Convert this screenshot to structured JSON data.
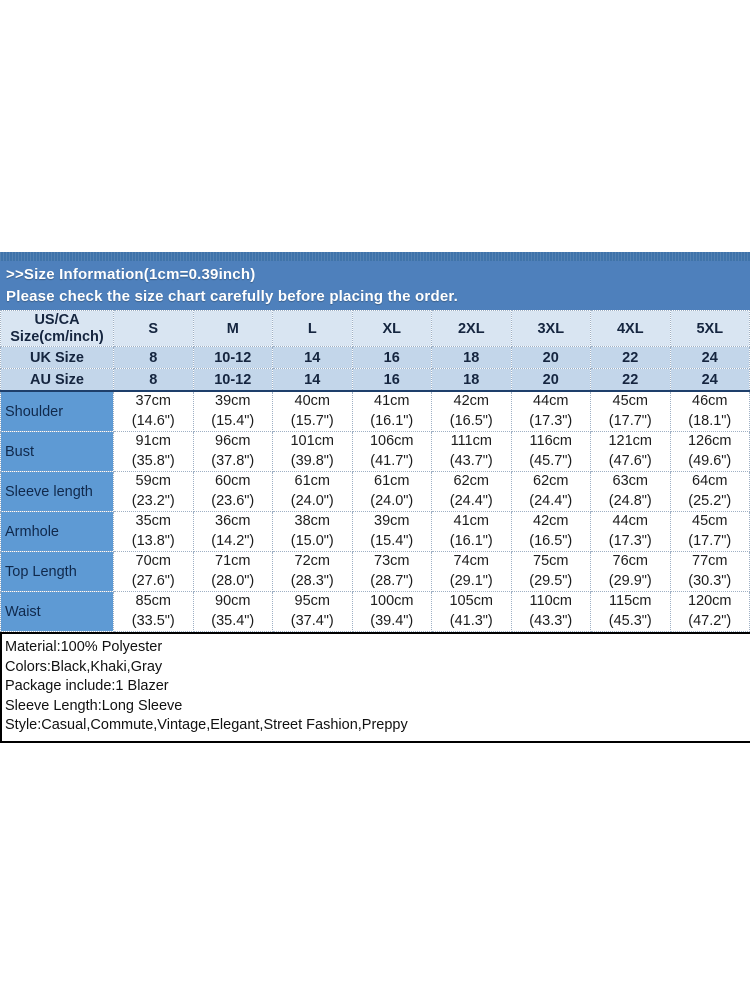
{
  "banner": {
    "line1": ">>Size Information(1cm=0.39inch)",
    "line2": "Please check the size chart carefully before placing the order."
  },
  "colors": {
    "banner_bg": "#4e80bc",
    "banner_strip": "#3f73aa",
    "header_row_bg": "#d9e5f2",
    "size_rows_bg": "#c3d6ea",
    "label_column_bg": "#5e9ad4",
    "divider_line": "#1e3f6b",
    "dotted_border": "#9fb0c4",
    "banner_text": "#ffffff"
  },
  "table": {
    "corner": {
      "line1": "US/CA",
      "line2": "Size(cm/inch)"
    },
    "sizes": [
      "S",
      "M",
      "L",
      "XL",
      "2XL",
      "3XL",
      "4XL",
      "5XL"
    ],
    "uk": {
      "label": "UK Size",
      "values": [
        "8",
        "10-12",
        "14",
        "16",
        "18",
        "20",
        "22",
        "24"
      ]
    },
    "au": {
      "label": "AU Size",
      "values": [
        "8",
        "10-12",
        "14",
        "16",
        "18",
        "20",
        "22",
        "24"
      ]
    },
    "measurements": [
      {
        "label": "Shoulder",
        "cm": [
          "37cm",
          "39cm",
          "40cm",
          "41cm",
          "42cm",
          "44cm",
          "45cm",
          "46cm"
        ],
        "inch": [
          "(14.6\")",
          "(15.4\")",
          "(15.7\")",
          "(16.1\")",
          "(16.5\")",
          "(17.3\")",
          "(17.7\")",
          "(18.1\")"
        ]
      },
      {
        "label": "Bust",
        "cm": [
          "91cm",
          "96cm",
          "101cm",
          "106cm",
          "111cm",
          "116cm",
          "121cm",
          "126cm"
        ],
        "inch": [
          "(35.8\")",
          "(37.8\")",
          "(39.8\")",
          "(41.7\")",
          "(43.7\")",
          "(45.7\")",
          "(47.6\")",
          "(49.6\")"
        ]
      },
      {
        "label": "Sleeve length",
        "cm": [
          "59cm",
          "60cm",
          "61cm",
          "61cm",
          "62cm",
          "62cm",
          "63cm",
          "64cm"
        ],
        "inch": [
          "(23.2\")",
          "(23.6\")",
          "(24.0\")",
          "(24.0\")",
          "(24.4\")",
          "(24.4\")",
          "(24.8\")",
          "(25.2\")"
        ]
      },
      {
        "label": "Armhole",
        "cm": [
          "35cm",
          "36cm",
          "38cm",
          "39cm",
          "41cm",
          "42cm",
          "44cm",
          "45cm"
        ],
        "inch": [
          "(13.8\")",
          "(14.2\")",
          "(15.0\")",
          "(15.4\")",
          "(16.1\")",
          "(16.5\")",
          "(17.3\")",
          "(17.7\")"
        ]
      },
      {
        "label": "Top Length",
        "cm": [
          "70cm",
          "71cm",
          "72cm",
          "73cm",
          "74cm",
          "75cm",
          "76cm",
          "77cm"
        ],
        "inch": [
          "(27.6\")",
          "(28.0\")",
          "(28.3\")",
          "(28.7\")",
          "(29.1\")",
          "(29.5\")",
          "(29.9\")",
          "(30.3\")"
        ]
      },
      {
        "label": "Waist",
        "cm": [
          "85cm",
          "90cm",
          "95cm",
          "100cm",
          "105cm",
          "110cm",
          "115cm",
          "120cm"
        ],
        "inch": [
          "(33.5\")",
          "(35.4\")",
          "(37.4\")",
          "(39.4\")",
          "(41.3\")",
          "(43.3\")",
          "(45.3\")",
          "(47.2\")"
        ]
      }
    ]
  },
  "details": {
    "lines": [
      "Material:100% Polyester",
      "Colors:Black,Khaki,Gray",
      "Package include:1 Blazer",
      "Sleeve Length:Long Sleeve",
      "Style:Casual,Commute,Vintage,Elegant,Street Fashion,Preppy"
    ]
  }
}
